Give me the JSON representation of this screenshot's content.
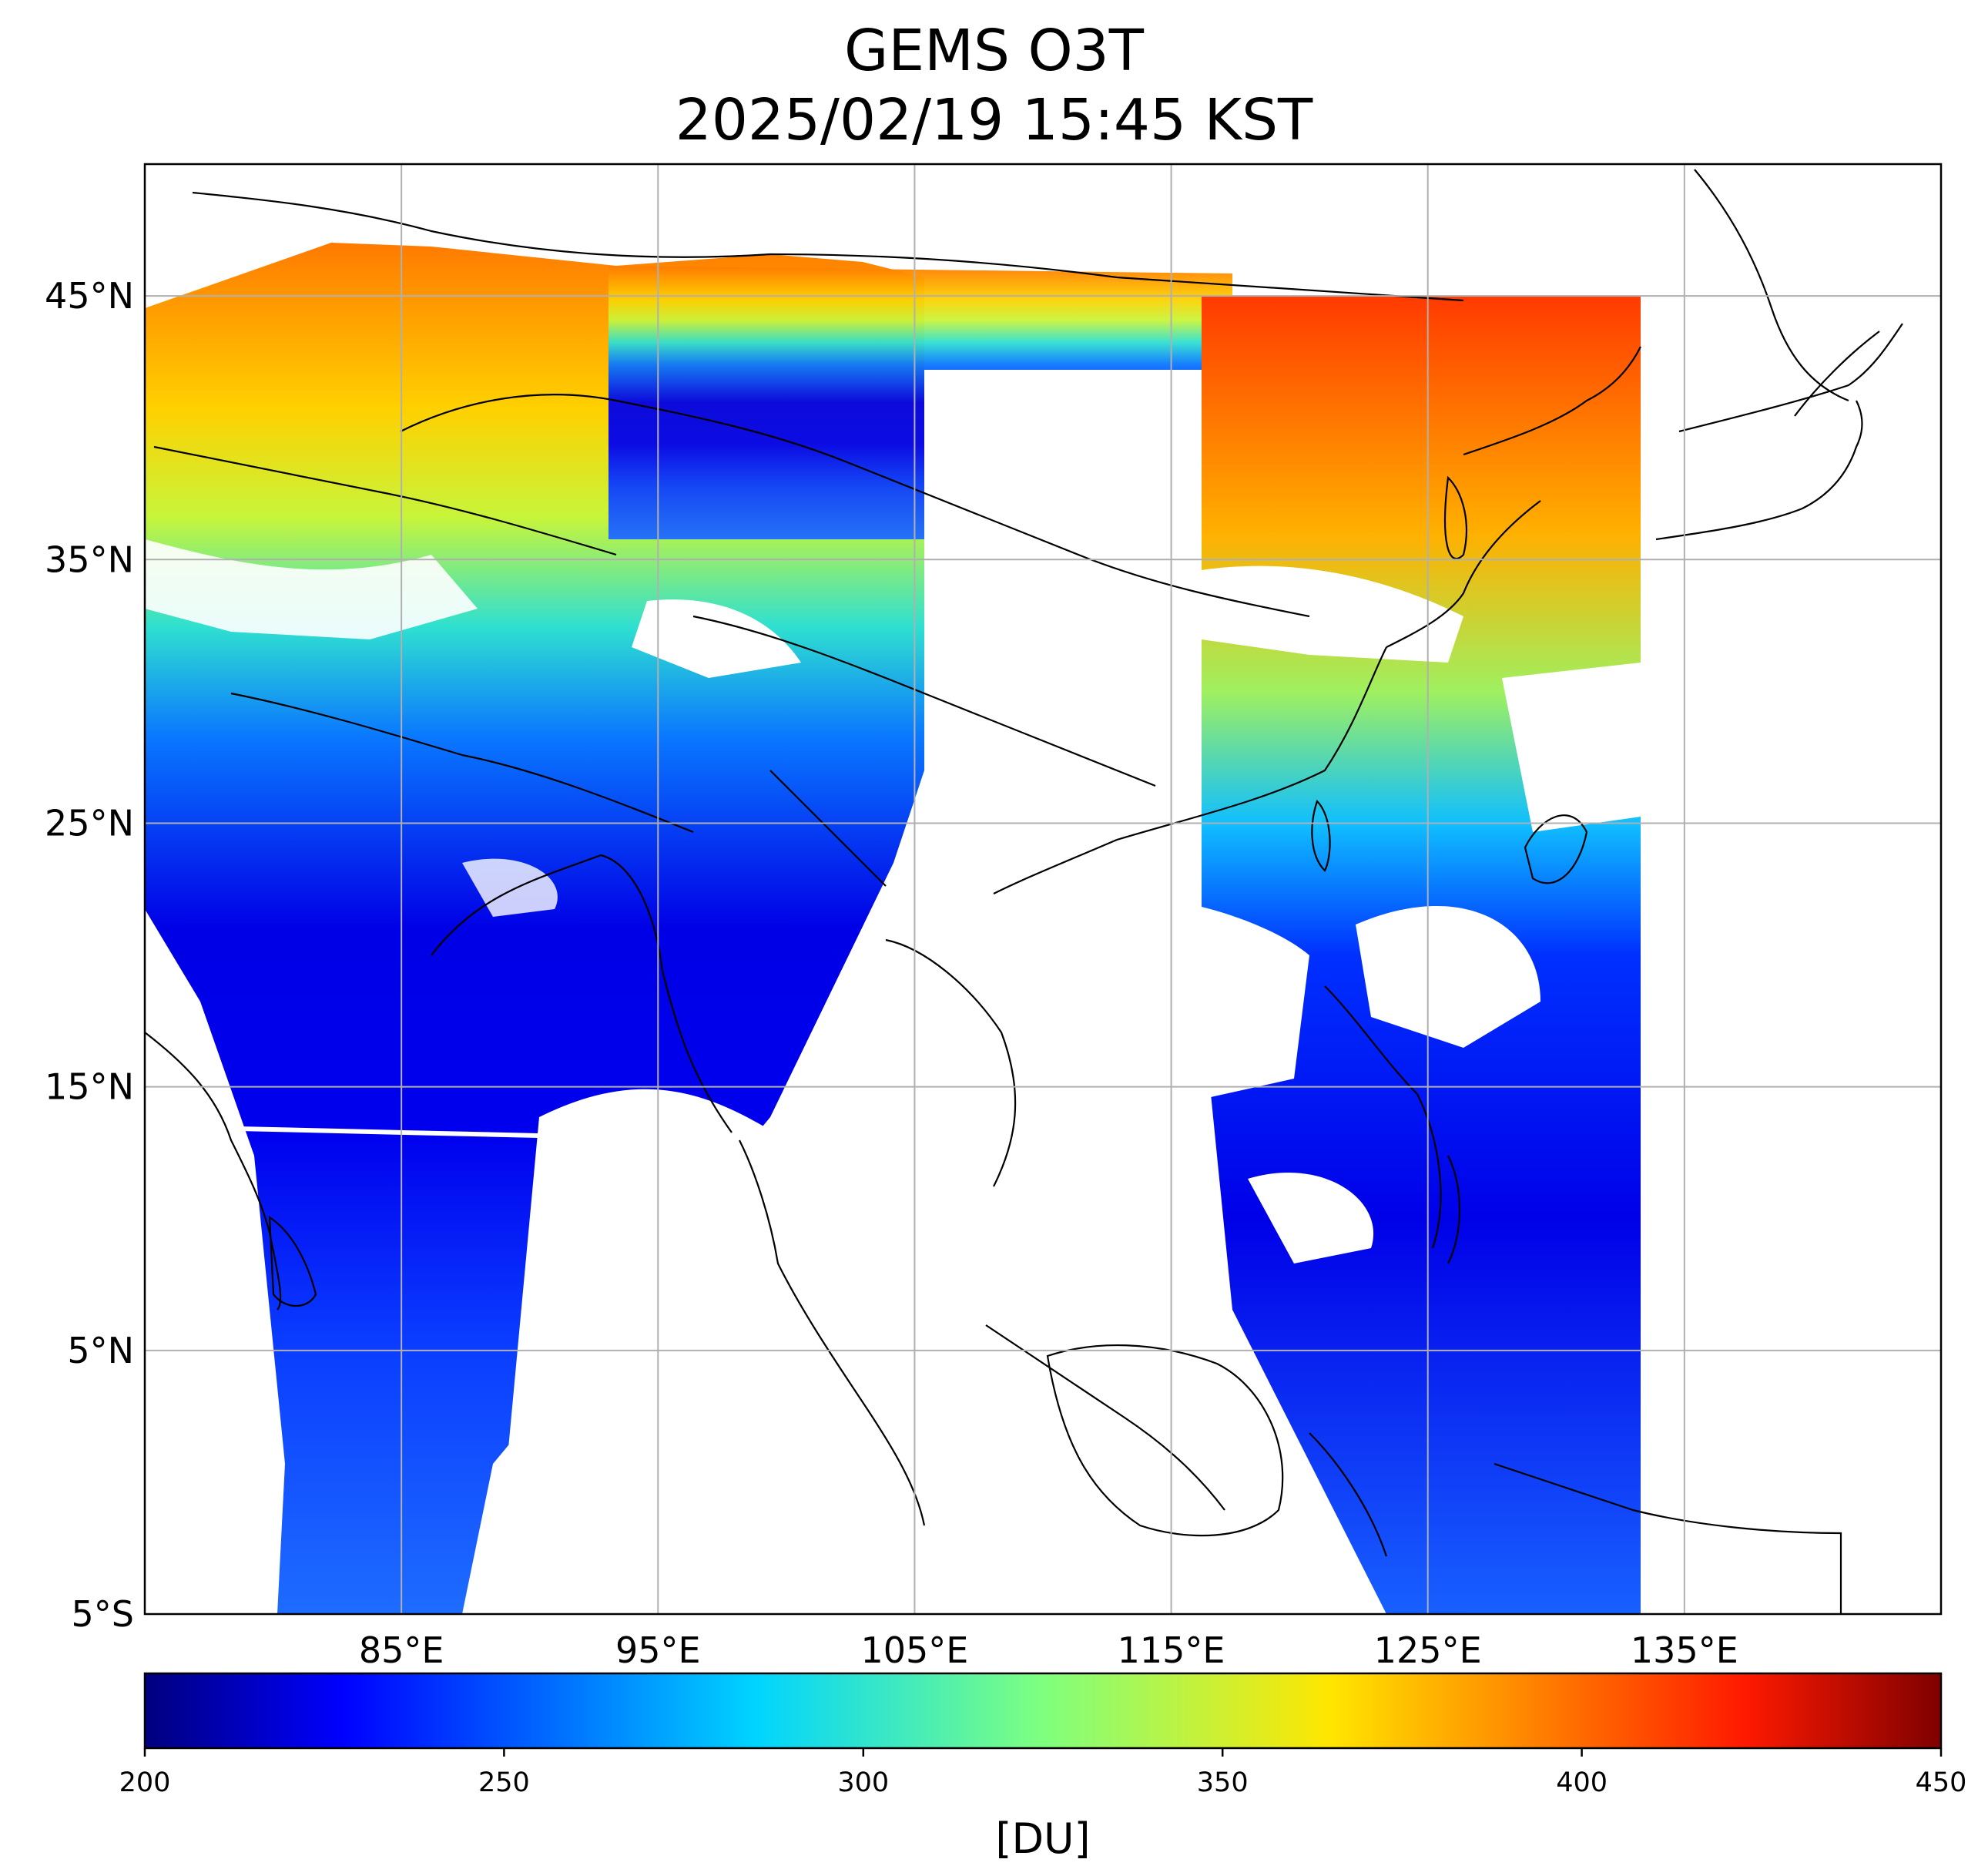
{
  "title": "GEMS O3T",
  "subtitle": "2025/02/19 15:45 KST",
  "map": {
    "lat_labels": [
      "45°N",
      "35°N",
      "25°N",
      "15°N",
      "5°N",
      "5°S"
    ],
    "lon_labels": [
      "85°E",
      "95°E",
      "105°E",
      "115°E",
      "125°E",
      "135°E"
    ],
    "lat_values": [
      45,
      35,
      25,
      15,
      5,
      -5
    ],
    "lon_values": [
      85,
      95,
      105,
      115,
      125,
      135
    ],
    "lon_range": [
      75,
      145
    ],
    "lat_range": [
      -5,
      50
    ],
    "grid": true
  },
  "colorbar": {
    "label": "[DU]",
    "ticks": [
      "200",
      "250",
      "300",
      "350",
      "400",
      "450"
    ],
    "tick_values": [
      200,
      250,
      300,
      350,
      400,
      450
    ],
    "range": [
      200,
      450
    ],
    "colormap": "jet",
    "colors": [
      "#00007f",
      "#0000ff",
      "#007fff",
      "#00ffff",
      "#7fff7f",
      "#ffff00",
      "#ff7f00",
      "#ff0000",
      "#7f0000"
    ]
  }
}
